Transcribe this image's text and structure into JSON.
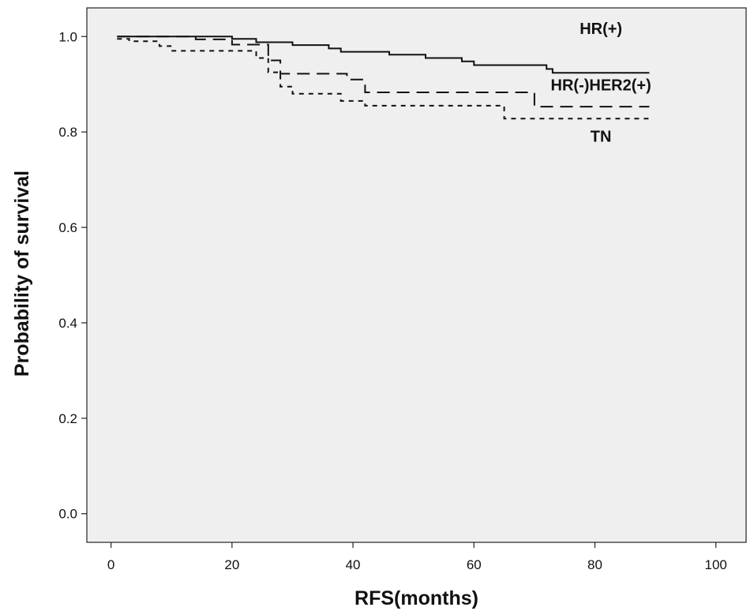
{
  "chart_data": {
    "type": "line",
    "style": "kaplan-meier step curves",
    "xlabel": "RFS(months)",
    "ylabel": "Probability of survival",
    "xlim": [
      -4,
      105
    ],
    "ylim": [
      -0.06,
      1.06
    ],
    "xticks": [
      0,
      20,
      40,
      60,
      80,
      100
    ],
    "yticks": [
      0.0,
      0.2,
      0.4,
      0.6,
      0.8,
      1.0
    ],
    "yticks_labels": [
      "0.0",
      "0.2",
      "0.4",
      "0.6",
      "0.8",
      "1.0"
    ],
    "grid": false,
    "background": "#efefef",
    "series": [
      {
        "name": "HR(+)",
        "line_style": "solid",
        "color": "#111111",
        "points": [
          [
            1,
            1.0
          ],
          [
            20,
            1.0
          ],
          [
            20,
            0.995
          ],
          [
            24,
            0.995
          ],
          [
            24,
            0.988
          ],
          [
            30,
            0.988
          ],
          [
            30,
            0.982
          ],
          [
            36,
            0.982
          ],
          [
            36,
            0.975
          ],
          [
            38,
            0.975
          ],
          [
            38,
            0.968
          ],
          [
            46,
            0.968
          ],
          [
            46,
            0.962
          ],
          [
            52,
            0.962
          ],
          [
            52,
            0.955
          ],
          [
            58,
            0.955
          ],
          [
            58,
            0.948
          ],
          [
            60,
            0.948
          ],
          [
            60,
            0.94
          ],
          [
            72,
            0.94
          ],
          [
            72,
            0.932
          ],
          [
            73,
            0.932
          ],
          [
            73,
            0.924
          ],
          [
            89,
            0.924
          ]
        ]
      },
      {
        "name": "HR(-)HER2(+)",
        "line_style": "long-dash",
        "color": "#111111",
        "points": [
          [
            1,
            1.0
          ],
          [
            14,
            1.0
          ],
          [
            14,
            0.994
          ],
          [
            20,
            0.994
          ],
          [
            20,
            0.983
          ],
          [
            26,
            0.983
          ],
          [
            26,
            0.95
          ],
          [
            28,
            0.95
          ],
          [
            28,
            0.922
          ],
          [
            39,
            0.922
          ],
          [
            39,
            0.91
          ],
          [
            42,
            0.91
          ],
          [
            42,
            0.883
          ],
          [
            70,
            0.883
          ],
          [
            70,
            0.853
          ],
          [
            89,
            0.853
          ]
        ]
      },
      {
        "name": "TN",
        "line_style": "short-dash",
        "color": "#111111",
        "points": [
          [
            1,
            0.995
          ],
          [
            3,
            0.995
          ],
          [
            3,
            0.99
          ],
          [
            8,
            0.99
          ],
          [
            8,
            0.98
          ],
          [
            10,
            0.98
          ],
          [
            10,
            0.97
          ],
          [
            24,
            0.97
          ],
          [
            24,
            0.955
          ],
          [
            26,
            0.955
          ],
          [
            26,
            0.925
          ],
          [
            28,
            0.925
          ],
          [
            28,
            0.895
          ],
          [
            30,
            0.895
          ],
          [
            30,
            0.88
          ],
          [
            38,
            0.88
          ],
          [
            38,
            0.865
          ],
          [
            42,
            0.865
          ],
          [
            42,
            0.855
          ],
          [
            65,
            0.855
          ],
          [
            65,
            0.828
          ],
          [
            89,
            0.828
          ]
        ]
      }
    ],
    "annotations": [
      {
        "text": "HR(+)",
        "x": 81,
        "y": 1.005,
        "series": "HR(+)"
      },
      {
        "text": "HR(-)HER2(+)",
        "x": 81,
        "y": 0.887,
        "series": "HR(-)HER2(+)"
      },
      {
        "text": "TN",
        "x": 81,
        "y": 0.78,
        "series": "TN"
      }
    ]
  }
}
